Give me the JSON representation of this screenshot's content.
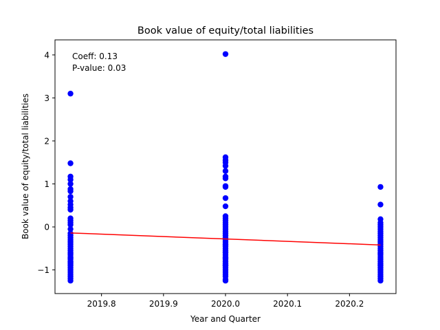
{
  "chart_data": {
    "type": "scatter",
    "title": "Book value of equity/total liabilities",
    "xlabel": "Year and Quarter",
    "ylabel": "Book value of equity/total liabilities",
    "xlim": [
      2019.725,
      2020.275
    ],
    "ylim": [
      -1.55,
      4.35
    ],
    "xticks": [
      2019.8,
      2019.9,
      2020.0,
      2020.1,
      2020.2
    ],
    "xtick_labels": [
      "2019.8",
      "2019.9",
      "2020.0",
      "2020.1",
      "2020.2"
    ],
    "yticks": [
      -1,
      0,
      1,
      2,
      3,
      4
    ],
    "ytick_labels": [
      "−1",
      "0",
      "1",
      "2",
      "3",
      "4"
    ],
    "grid": false,
    "point_color": "#0000ff",
    "line_color": "#ff0000",
    "series": [
      {
        "x": [
          2019.75,
          2019.75,
          2019.75,
          2019.75,
          2019.75,
          2019.75,
          2019.75,
          2019.75,
          2019.75,
          2019.75,
          2019.75,
          2019.75,
          2019.75,
          2019.75,
          2019.75,
          2019.75,
          2019.75,
          2019.75,
          2019.75,
          2019.75,
          2019.75,
          2019.75,
          2019.75,
          2019.75,
          2019.75,
          2019.75,
          2019.75,
          2019.75,
          2019.75,
          2019.75,
          2019.75,
          2019.75,
          2019.75,
          2019.75,
          2019.75,
          2019.75,
          2019.75,
          2019.75,
          2019.75,
          2019.75,
          2019.75,
          2019.75,
          2019.75,
          2019.75,
          2020.0,
          2020.0,
          2020.0,
          2020.0,
          2020.0,
          2020.0,
          2020.0,
          2020.0,
          2020.0,
          2020.0,
          2020.0,
          2020.0,
          2020.0,
          2020.0,
          2020.0,
          2020.0,
          2020.0,
          2020.0,
          2020.0,
          2020.0,
          2020.0,
          2020.0,
          2020.0,
          2020.0,
          2020.0,
          2020.0,
          2020.0,
          2020.0,
          2020.0,
          2020.0,
          2020.0,
          2020.0,
          2020.0,
          2020.0,
          2020.0,
          2020.0,
          2020.0,
          2020.0,
          2020.0,
          2020.0,
          2020.0,
          2020.0,
          2020.0,
          2020.0,
          2020.0,
          2020.0,
          2020.0,
          2020.0,
          2020.25,
          2020.25,
          2020.25,
          2020.25,
          2020.25,
          2020.25,
          2020.25,
          2020.25,
          2020.25,
          2020.25,
          2020.25,
          2020.25,
          2020.25,
          2020.25,
          2020.25,
          2020.25,
          2020.25,
          2020.25,
          2020.25,
          2020.25,
          2020.25,
          2020.25,
          2020.25,
          2020.25,
          2020.25,
          2020.25,
          2020.25,
          2020.25,
          2020.25,
          2020.25,
          2020.25,
          2020.25,
          2020.25
        ],
        "y": [
          3.1,
          1.48,
          1.17,
          1.1,
          1.0,
          0.88,
          0.83,
          0.7,
          0.6,
          0.52,
          0.45,
          0.4,
          0.2,
          0.15,
          0.1,
          0.05,
          -0.05,
          -0.15,
          -0.2,
          -0.25,
          -0.3,
          -0.35,
          -0.4,
          -0.45,
          -0.5,
          -0.55,
          -0.6,
          -0.65,
          -0.7,
          -0.75,
          -0.8,
          -0.85,
          -0.9,
          -0.95,
          -1.0,
          -1.05,
          -1.1,
          -1.15,
          -1.2,
          -1.25,
          -0.62,
          -0.72,
          -0.82,
          -0.88,
          4.02,
          1.62,
          1.55,
          1.5,
          1.42,
          1.3,
          1.17,
          1.13,
          0.95,
          0.93,
          0.67,
          0.48,
          0.25,
          0.2,
          0.15,
          0.1,
          0.05,
          0.0,
          -0.05,
          -0.1,
          -0.15,
          -0.2,
          -0.25,
          -0.3,
          -0.35,
          -0.4,
          -0.45,
          -0.5,
          -0.55,
          -0.6,
          -0.65,
          -0.7,
          -0.75,
          -0.8,
          -0.85,
          -0.9,
          -0.95,
          -1.0,
          -1.05,
          -1.1,
          -1.15,
          -1.22,
          -1.25,
          -0.88,
          -0.9,
          -0.72,
          -0.58,
          -0.42,
          0.93,
          0.52,
          0.18,
          0.1,
          0.05,
          0.0,
          -0.05,
          -0.1,
          -0.15,
          -0.2,
          -0.25,
          -0.3,
          -0.35,
          -0.4,
          -0.45,
          -0.5,
          -0.55,
          -0.6,
          -0.65,
          -0.7,
          -0.75,
          -0.8,
          -0.85,
          -0.9,
          -0.95,
          -1.0,
          -1.05,
          -1.1,
          -1.15,
          -1.2,
          -1.25,
          -0.88,
          -0.62
        ]
      }
    ],
    "regression_line": {
      "x": [
        2019.75,
        2020.25
      ],
      "y": [
        -0.14,
        -0.42
      ]
    },
    "annotations": [
      "Coeff: 0.13",
      "P-value: 0.03"
    ]
  }
}
